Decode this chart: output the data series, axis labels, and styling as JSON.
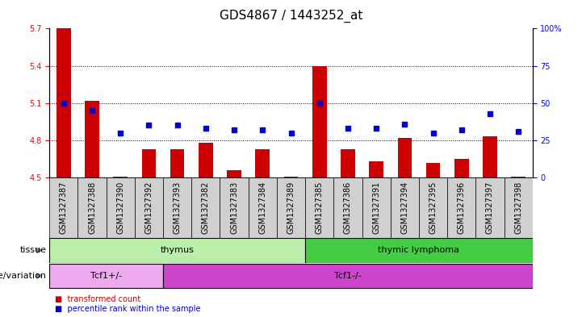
{
  "title": "GDS4867 / 1443252_at",
  "samples": [
    "GSM1327387",
    "GSM1327388",
    "GSM1327390",
    "GSM1327392",
    "GSM1327393",
    "GSM1327382",
    "GSM1327383",
    "GSM1327384",
    "GSM1327389",
    "GSM1327385",
    "GSM1327386",
    "GSM1327391",
    "GSM1327394",
    "GSM1327395",
    "GSM1327396",
    "GSM1327397",
    "GSM1327398"
  ],
  "red_values": [
    5.7,
    5.12,
    4.51,
    4.73,
    4.73,
    4.78,
    4.56,
    4.73,
    4.51,
    5.4,
    4.73,
    4.63,
    4.82,
    4.62,
    4.65,
    4.83,
    4.51
  ],
  "blue_values": [
    50,
    45,
    30,
    35,
    35,
    33,
    32,
    32,
    30,
    50,
    33,
    33,
    36,
    30,
    32,
    43,
    31
  ],
  "ylim_left": [
    4.5,
    5.7
  ],
  "ylim_right": [
    0,
    100
  ],
  "yticks_left": [
    4.5,
    4.8,
    5.1,
    5.4,
    5.7
  ],
  "yticks_right": [
    0,
    25,
    50,
    75,
    100
  ],
  "tissue_groups": [
    {
      "label": "thymus",
      "start": 0,
      "end": 9,
      "color": "#BBEEAA"
    },
    {
      "label": "thymic lymphoma",
      "start": 9,
      "end": 17,
      "color": "#44CC44"
    }
  ],
  "genotype_groups": [
    {
      "label": "Tcf1+/-",
      "start": 0,
      "end": 4,
      "color": "#EEAAEE"
    },
    {
      "label": "Tcf1-/-",
      "start": 4,
      "end": 17,
      "color": "#CC44CC"
    }
  ],
  "legend_items": [
    {
      "color": "#CC0000",
      "label": "transformed count"
    },
    {
      "color": "#0000CC",
      "label": "percentile rank within the sample"
    }
  ],
  "bar_color": "#CC0000",
  "marker_color": "#0000CC",
  "bg_color": "#FFFFFF",
  "sample_label_bg": "#D0D0D0",
  "title_fontsize": 11,
  "tick_fontsize": 7,
  "label_fontsize": 8,
  "baseline": 4.5
}
